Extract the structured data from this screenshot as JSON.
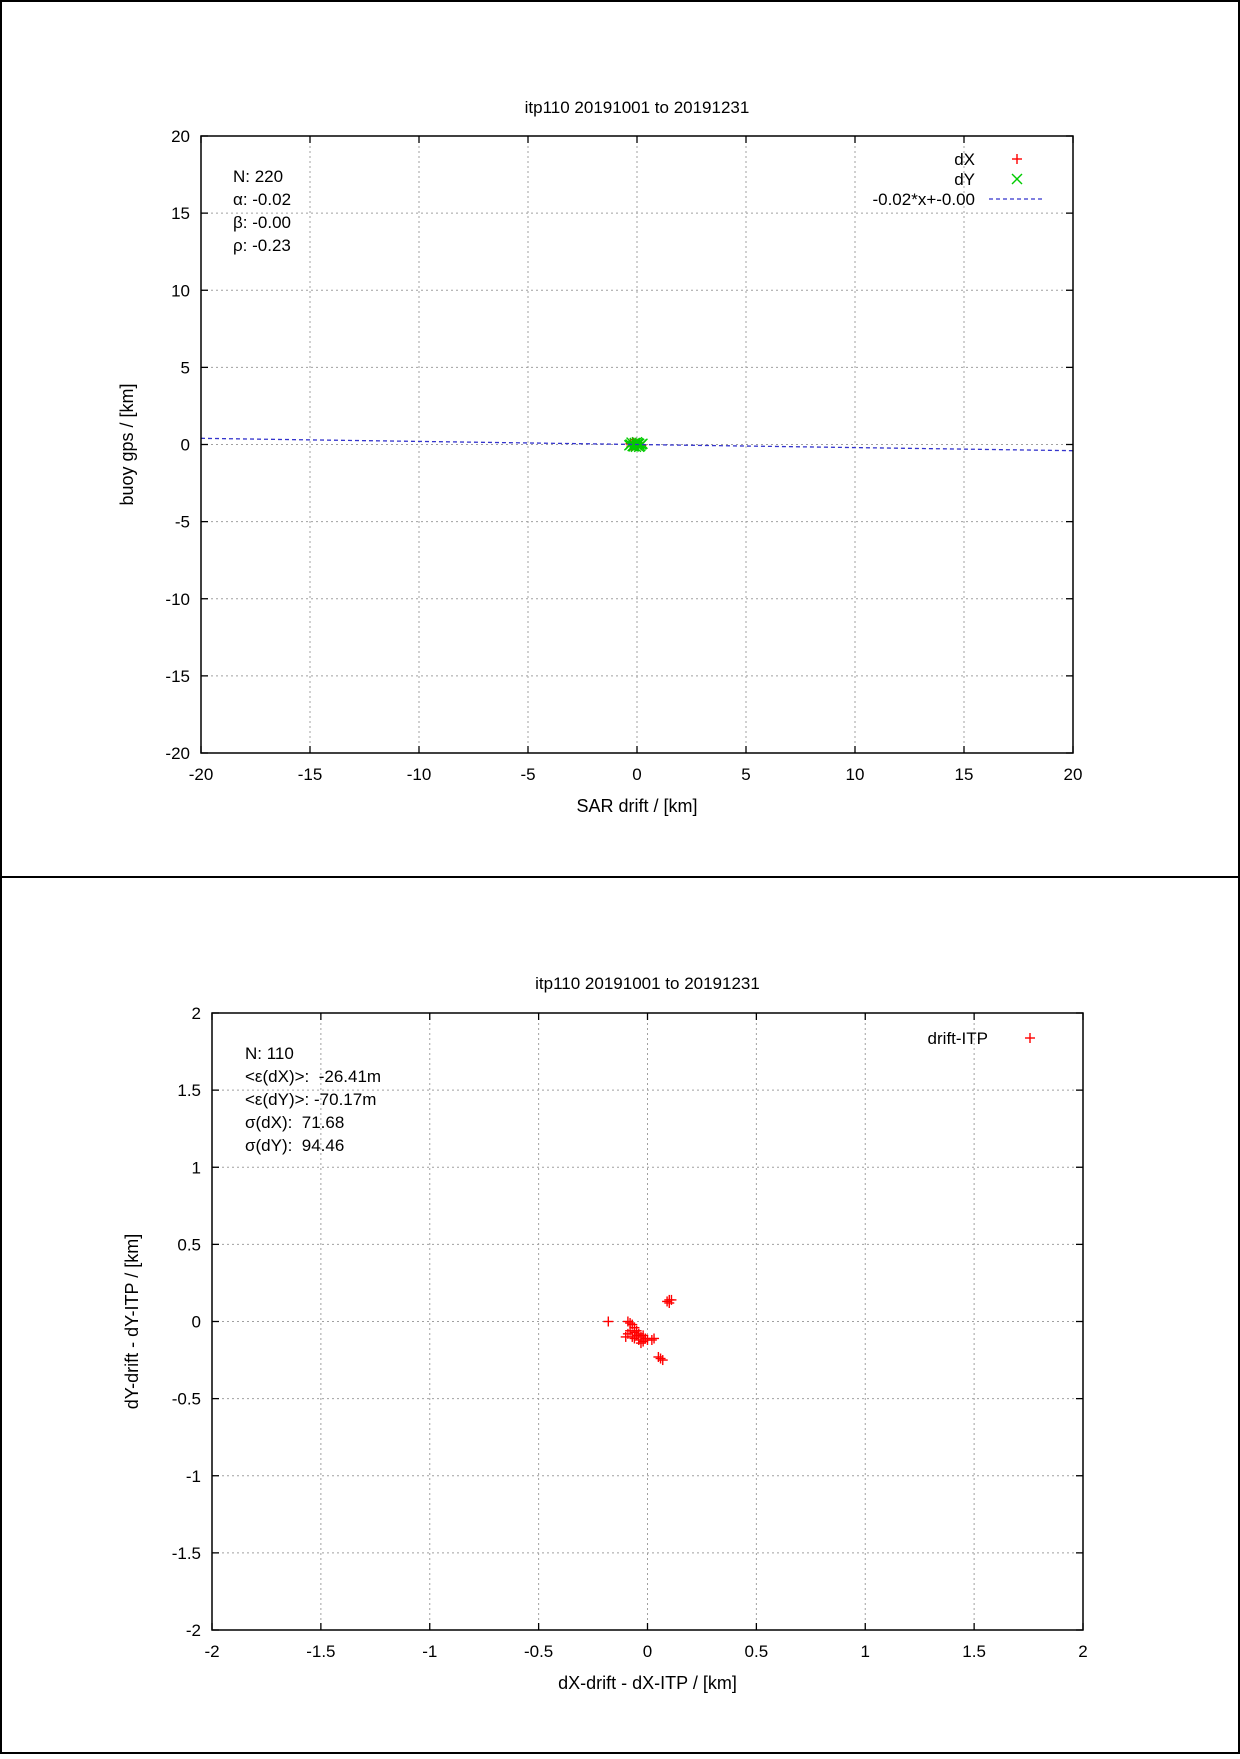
{
  "chart_data": [
    {
      "type": "scatter",
      "title": "itp110 20191001 to 20191231",
      "xlabel": "SAR drift / [km]",
      "ylabel": "buoy gps / [km]",
      "xlim": [
        -20,
        20
      ],
      "ylim": [
        -20,
        20
      ],
      "xticks": [
        -20,
        -15,
        -10,
        -5,
        0,
        5,
        10,
        15,
        20
      ],
      "yticks": [
        -20,
        -15,
        -10,
        -5,
        0,
        5,
        10,
        15,
        20
      ],
      "grid": true,
      "legend_position": "top-right",
      "stats": [
        "N: 220",
        "α: -0.02",
        "β: -0.00",
        "ρ: -0.23"
      ],
      "series": [
        {
          "name": "dX",
          "marker": "plus",
          "color": "#ff0000",
          "points": [
            [
              -0.3,
              0.05
            ],
            [
              -0.2,
              0.1
            ],
            [
              -0.1,
              -0.05
            ],
            [
              0.0,
              0.0
            ],
            [
              0.1,
              0.1
            ],
            [
              -0.25,
              -0.1
            ],
            [
              0.05,
              -0.08
            ],
            [
              -0.15,
              0.12
            ],
            [
              0.2,
              -0.05
            ],
            [
              -0.05,
              0.05
            ]
          ]
        },
        {
          "name": "dY",
          "marker": "x",
          "color": "#00cc00",
          "points": [
            [
              -0.3,
              0.0
            ],
            [
              -0.2,
              -0.1
            ],
            [
              -0.1,
              0.1
            ],
            [
              0.0,
              -0.05
            ],
            [
              0.1,
              0.05
            ],
            [
              0.15,
              -0.1
            ],
            [
              -0.25,
              0.12
            ],
            [
              0.05,
              0.08
            ],
            [
              0.2,
              0.0
            ],
            [
              -0.15,
              -0.12
            ],
            [
              0.0,
              0.15
            ],
            [
              -0.05,
              -0.15
            ],
            [
              0.25,
              0.05
            ],
            [
              -0.35,
              -0.05
            ],
            [
              0.1,
              -0.15
            ]
          ]
        },
        {
          "name": "-0.02*x+-0.00",
          "type": "line",
          "style": "dashed",
          "color": "#3333cc",
          "slope": -0.02,
          "intercept": 0.0
        }
      ]
    },
    {
      "type": "scatter",
      "title": "itp110 20191001 to 20191231",
      "xlabel": "dX-drift - dX-ITP / [km]",
      "ylabel": "dY-drift - dY-ITP / [km]",
      "xlim": [
        -2,
        2
      ],
      "ylim": [
        -2,
        2
      ],
      "xticks": [
        "-2",
        "-1.5",
        "-1",
        "-0.5",
        "0",
        "0.5",
        "1",
        "1.5",
        "2"
      ],
      "yticks": [
        "-2",
        "-1.5",
        "-1",
        "-0.5",
        "0",
        "0.5",
        "1",
        "1.5",
        "2"
      ],
      "grid": true,
      "legend_position": "top-right",
      "stats": [
        "N: 110",
        "<ε(dX)>:  -26.41m",
        "<ε(dY)>: -70.17m",
        "σ(dX):  71.68",
        "σ(dY):  94.46"
      ],
      "series": [
        {
          "name": "drift-ITP",
          "marker": "plus",
          "color": "#ff0000",
          "points": [
            [
              -0.18,
              0.0
            ],
            [
              -0.09,
              0.0
            ],
            [
              -0.08,
              -0.01
            ],
            [
              -0.07,
              -0.02
            ],
            [
              -0.06,
              -0.04
            ],
            [
              -0.08,
              -0.06
            ],
            [
              -0.1,
              -0.1
            ],
            [
              -0.09,
              -0.08
            ],
            [
              -0.06,
              -0.07
            ],
            [
              -0.05,
              -0.09
            ],
            [
              -0.04,
              -0.12
            ],
            [
              -0.03,
              -0.14
            ],
            [
              -0.02,
              -0.13
            ],
            [
              -0.01,
              -0.11
            ],
            [
              0.0,
              -0.12
            ],
            [
              0.02,
              -0.12
            ],
            [
              0.03,
              -0.11
            ],
            [
              -0.07,
              -0.1
            ],
            [
              -0.05,
              -0.06
            ],
            [
              -0.04,
              -0.08
            ],
            [
              0.06,
              -0.24
            ],
            [
              0.05,
              -0.23
            ],
            [
              0.07,
              -0.25
            ],
            [
              0.09,
              0.13
            ],
            [
              0.1,
              0.14
            ],
            [
              0.11,
              0.14
            ],
            [
              0.1,
              0.12
            ],
            [
              -0.02,
              -0.09
            ],
            [
              -0.03,
              -0.1
            ],
            [
              -0.06,
              -0.11
            ]
          ]
        }
      ]
    }
  ]
}
